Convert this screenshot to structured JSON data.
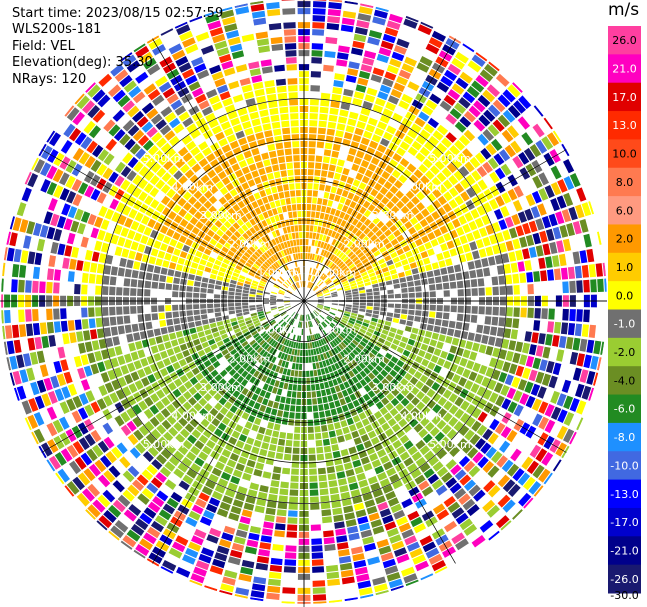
{
  "header": {
    "start_time": "Start time: 2023/08/15 02:57:59",
    "instrument": "WLS200s-181",
    "field": "Field: VEL",
    "elevation": "Elevation(deg): 35.30",
    "nrays": "NRays: 120"
  },
  "colorbar": {
    "unit": "m/s",
    "ticks": [
      "26.0",
      "21.0",
      "17.0",
      "13.0",
      "10.0",
      "8.0",
      "6.0",
      "2.0",
      "1.0",
      "0.0",
      "-1.0",
      "-2.0",
      "-4.0",
      "-6.0",
      "-8.0",
      "-10.0",
      "-13.0",
      "-17.0",
      "-21.0",
      "-26.0",
      "-30.0"
    ],
    "colors": [
      "#ff3fa0",
      "#ff00c0",
      "#e00000",
      "#ff2a00",
      "#ff4a1a",
      "#ff7a50",
      "#ff9a80",
      "#ff9900",
      "#ffcc00",
      "#ffff00",
      "#707070",
      "#9acd32",
      "#6b8e23",
      "#228b22",
      "#1e90ff",
      "#4169e1",
      "#0000ff",
      "#0000cd",
      "#00008b",
      "#191970"
    ]
  },
  "chart_data": {
    "type": "heatmap",
    "title": "",
    "field": "VEL",
    "units": "m/s",
    "range_rings_km": [
      1.0,
      2.0,
      3.0,
      4.0,
      5.0
    ],
    "ring_labels": [
      "1.00km",
      "2.00km",
      "3.00km",
      "4.00km",
      "5.00km"
    ],
    "n_rays": 120,
    "value_range": [
      -30.0,
      26.0
    ],
    "pattern": {
      "north_near_range": "positive ~2 to 6 m/s (yellow/orange)",
      "south_near_range": "negative ~-2 to -6 m/s (green)",
      "east_west_near_range": "~0 m/s (gray)",
      "far_range": "noisy, all values"
    }
  }
}
